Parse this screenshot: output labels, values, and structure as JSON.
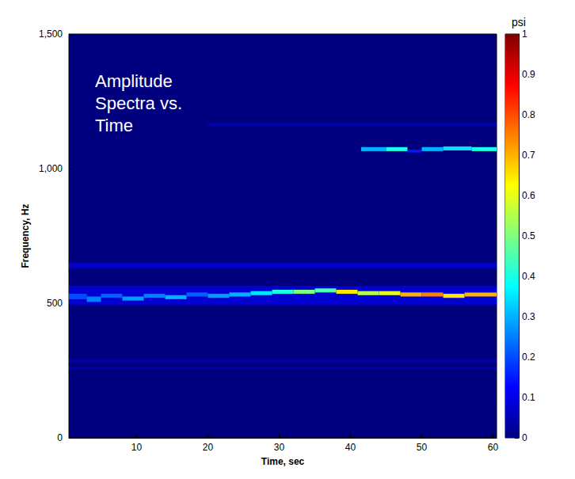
{
  "chart_data": {
    "type": "heatmap",
    "annotation": "Amplitude\nSpectra vs.\nTime",
    "x_label": "Time, sec",
    "y_label": "Frequency, Hz",
    "xlim": [
      0.5,
      60.5
    ],
    "xticks": [
      10,
      20,
      30,
      40,
      50,
      60
    ],
    "ylim": [
      0,
      1500
    ],
    "yticks": [
      0,
      500,
      1000,
      1500
    ],
    "colorbar": {
      "label": "psi",
      "range": [
        0,
        1
      ],
      "ticks": [
        0,
        0.1,
        0.2,
        0.3,
        0.4,
        0.5,
        0.6,
        0.7,
        0.8,
        0.9,
        1
      ]
    },
    "cells": [
      {
        "time": [
          0.5,
          60.5
        ],
        "frequency": [
          630,
          650
        ],
        "psi": 0.07
      },
      {
        "time": [
          0.5,
          60.5
        ],
        "frequency": [
          280,
          290
        ],
        "psi": 0.05
      },
      {
        "time": [
          0.5,
          60.5
        ],
        "frequency": [
          255,
          265
        ],
        "psi": 0.04
      },
      {
        "time": [
          0.5,
          60.5
        ],
        "frequency": [
          495,
          565
        ],
        "psi": 0.08
      },
      {
        "time": [
          20,
          60.5
        ],
        "frequency": [
          1160,
          1170
        ],
        "psi": 0.06
      },
      {
        "time": [
          0.5,
          3
        ],
        "frequency": [
          515,
          535
        ],
        "psi": 0.2
      },
      {
        "time": [
          3,
          5
        ],
        "frequency": [
          505,
          525
        ],
        "psi": 0.25
      },
      {
        "time": [
          5,
          8
        ],
        "frequency": [
          520,
          535
        ],
        "psi": 0.22
      },
      {
        "time": [
          8,
          11
        ],
        "frequency": [
          510,
          525
        ],
        "psi": 0.28
      },
      {
        "time": [
          11,
          14
        ],
        "frequency": [
          520,
          535
        ],
        "psi": 0.25
      },
      {
        "time": [
          14,
          17
        ],
        "frequency": [
          515,
          530
        ],
        "psi": 0.3
      },
      {
        "time": [
          17,
          20
        ],
        "frequency": [
          525,
          540
        ],
        "psi": 0.22
      },
      {
        "time": [
          20,
          23
        ],
        "frequency": [
          520,
          535
        ],
        "psi": 0.28
      },
      {
        "time": [
          23,
          26
        ],
        "frequency": [
          525,
          540
        ],
        "psi": 0.3
      },
      {
        "time": [
          26,
          29
        ],
        "frequency": [
          530,
          545
        ],
        "psi": 0.35
      },
      {
        "time": [
          29,
          32
        ],
        "frequency": [
          535,
          550
        ],
        "psi": 0.4
      },
      {
        "time": [
          32,
          35
        ],
        "frequency": [
          535,
          550
        ],
        "psi": 0.5
      },
      {
        "time": [
          35,
          38
        ],
        "frequency": [
          540,
          555
        ],
        "psi": 0.45
      },
      {
        "time": [
          38,
          41
        ],
        "frequency": [
          535,
          550
        ],
        "psi": 0.65
      },
      {
        "time": [
          41,
          44
        ],
        "frequency": [
          530,
          545
        ],
        "psi": 0.55
      },
      {
        "time": [
          44,
          47
        ],
        "frequency": [
          530,
          545
        ],
        "psi": 0.6
      },
      {
        "time": [
          47,
          50
        ],
        "frequency": [
          525,
          540
        ],
        "psi": 0.7
      },
      {
        "time": [
          50,
          53
        ],
        "frequency": [
          525,
          540
        ],
        "psi": 0.75
      },
      {
        "time": [
          53,
          56
        ],
        "frequency": [
          520,
          535
        ],
        "psi": 0.65
      },
      {
        "time": [
          56,
          60.5
        ],
        "frequency": [
          525,
          540
        ],
        "psi": 0.7
      },
      {
        "time": [
          41.5,
          45
        ],
        "frequency": [
          1065,
          1080
        ],
        "psi": 0.3
      },
      {
        "time": [
          45,
          48
        ],
        "frequency": [
          1065,
          1080
        ],
        "psi": 0.4
      },
      {
        "time": [
          48,
          50
        ],
        "frequency": [
          1060,
          1070
        ],
        "psi": 0.15
      },
      {
        "time": [
          50,
          53
        ],
        "frequency": [
          1065,
          1080
        ],
        "psi": 0.3
      },
      {
        "time": [
          53,
          57
        ],
        "frequency": [
          1068,
          1082
        ],
        "psi": 0.35
      },
      {
        "time": [
          57,
          60.5
        ],
        "frequency": [
          1065,
          1080
        ],
        "psi": 0.4
      }
    ]
  }
}
